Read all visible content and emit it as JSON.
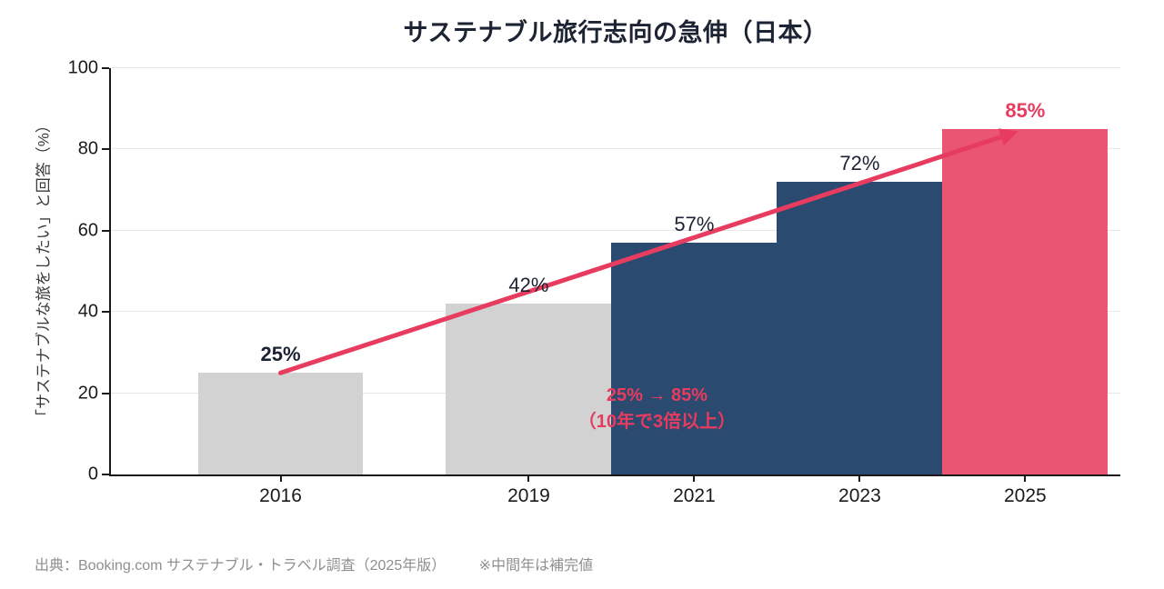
{
  "chart_data": {
    "type": "bar",
    "title": "サステナブル旅行志向の急伸（日本）",
    "ylabel": "「サステナブルな旅をしたい」と回答（%）",
    "x": [
      2016,
      2019,
      2021,
      2023,
      2025
    ],
    "values": [
      25,
      42,
      57,
      72,
      85
    ],
    "bar_labels": [
      "25%",
      "42%",
      "57%",
      "72%",
      "85%"
    ],
    "bar_color_keys": [
      "gray",
      "gray",
      "navy",
      "navy",
      "pink"
    ],
    "label_bold": [
      true,
      false,
      false,
      false,
      true
    ],
    "label_color_keys": [
      "dark",
      "dark",
      "dark",
      "dark",
      "line"
    ],
    "ylim": [
      0,
      100
    ],
    "yticks": [
      0,
      20,
      40,
      60,
      80,
      100
    ],
    "xlim": [
      2013.95,
      2026.15
    ],
    "bar_width_years": 2,
    "grid": true,
    "legend": "none",
    "trend_line": {
      "x": [
        2016,
        2025
      ],
      "y": [
        25,
        85
      ]
    },
    "annotation": {
      "line1": "25% → 85%",
      "line2": "（10年で3倍以上）",
      "x": 2020.55,
      "y": 16
    }
  },
  "colors": {
    "gray": "#d2d2d2",
    "navy": "#2b4a6f",
    "pink": "#ea5571",
    "line": "#e73c5f",
    "dark": "#1b2233",
    "spine": "#1a1a1a",
    "grid": "#e7e7e7"
  },
  "footer": {
    "source": "出典：Booking.com サステナブル・トラベル調査（2025年版）",
    "note": "※中間年は補完値"
  }
}
